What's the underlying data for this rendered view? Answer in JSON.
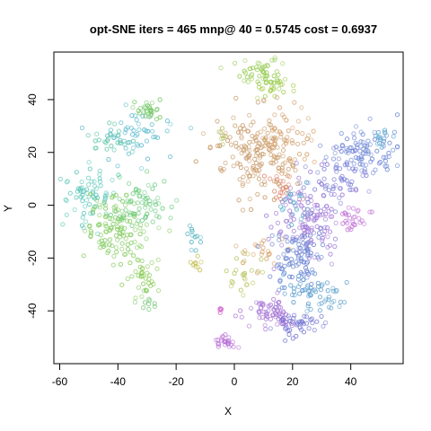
{
  "chart_data": {
    "type": "scatter",
    "title": "opt-SNE iters = 465 mnp@ 40 = 0.5745 cost = 0.6937",
    "xlabel": "X",
    "ylabel": "Y",
    "xlim": [
      -62,
      58
    ],
    "ylim": [
      -60,
      58
    ],
    "x_ticks": [
      -60,
      -40,
      -20,
      0,
      20,
      40
    ],
    "y_ticks": [
      -40,
      -20,
      0,
      20,
      40
    ],
    "grid": false,
    "legend": "none",
    "point_style": "open circles, semi-transparent, hue-colored by cluster",
    "clusters": [
      {
        "color": "#9acd58",
        "cx": 8,
        "cy": 50,
        "sx": 5,
        "sy": 3,
        "n": 55
      },
      {
        "color": "#a6cf50",
        "cx": 12,
        "cy": 45,
        "sx": 3,
        "sy": 2,
        "n": 20
      },
      {
        "color": "#c99b6a",
        "cx": 8,
        "cy": 20,
        "sx": 7,
        "sy": 8,
        "n": 170
      },
      {
        "color": "#d4a06a",
        "cx": 17,
        "cy": 24,
        "sx": 5,
        "sy": 6,
        "n": 50
      },
      {
        "color": "#e08a72",
        "cx": 16,
        "cy": 8,
        "sx": 3,
        "sy": 3,
        "n": 20
      },
      {
        "color": "#b6bd64",
        "cx": -5,
        "cy": 26,
        "sx": 2,
        "sy": 2,
        "n": 8
      },
      {
        "color": "#66bfcf",
        "cx": -34,
        "cy": 27,
        "sx": 6,
        "sy": 4,
        "n": 55
      },
      {
        "color": "#5fc7a8",
        "cx": -44,
        "cy": 24,
        "sx": 4,
        "sy": 3,
        "n": 25
      },
      {
        "color": "#78c86a",
        "cx": -30,
        "cy": 36,
        "sx": 3,
        "sy": 2,
        "n": 30
      },
      {
        "color": "#58c6b8",
        "cx": -50,
        "cy": 5,
        "sx": 5,
        "sy": 6,
        "n": 70
      },
      {
        "color": "#86cd64",
        "cx": -40,
        "cy": -8,
        "sx": 6,
        "sy": 7,
        "n": 130
      },
      {
        "color": "#6dcc82",
        "cx": -32,
        "cy": 0,
        "sx": 5,
        "sy": 5,
        "n": 60
      },
      {
        "color": "#8dcd5a",
        "cx": -31,
        "cy": -27,
        "sx": 3,
        "sy": 4,
        "n": 35
      },
      {
        "color": "#7ac878",
        "cx": -30,
        "cy": -38,
        "sx": 2,
        "sy": 2,
        "n": 10
      },
      {
        "color": "#5ab6c0",
        "cx": -14,
        "cy": -12,
        "sx": 1.5,
        "sy": 3,
        "n": 12
      },
      {
        "color": "#c6c25a",
        "cx": -13,
        "cy": -22,
        "sx": 1.5,
        "sy": 2,
        "n": 10
      },
      {
        "color": "#b9c45e",
        "cx": 3,
        "cy": -26,
        "sx": 3,
        "sy": 4,
        "n": 25
      },
      {
        "color": "#d8a068",
        "cx": 11,
        "cy": -18,
        "sx": 3,
        "sy": 3,
        "n": 20
      },
      {
        "color": "#6f88d6",
        "cx": 44,
        "cy": 20,
        "sx": 6,
        "sy": 4,
        "n": 90
      },
      {
        "color": "#7f7fd8",
        "cx": 35,
        "cy": 10,
        "sx": 6,
        "sy": 6,
        "n": 60
      },
      {
        "color": "#a07ad8",
        "cx": 26,
        "cy": -5,
        "sx": 6,
        "sy": 7,
        "n": 130
      },
      {
        "color": "#c47ad8",
        "cx": 40,
        "cy": -5,
        "sx": 3,
        "sy": 3,
        "n": 30
      },
      {
        "color": "#6a84d2",
        "cx": 22,
        "cy": -20,
        "sx": 4,
        "sy": 6,
        "n": 100
      },
      {
        "color": "#5fa0d0",
        "cx": 25,
        "cy": -32,
        "sx": 4,
        "sy": 4,
        "n": 40
      },
      {
        "color": "#a878d6",
        "cx": 13,
        "cy": -41,
        "sx": 4,
        "sy": 3,
        "n": 70
      },
      {
        "color": "#6e70d2",
        "cx": 22,
        "cy": -45,
        "sx": 4,
        "sy": 3,
        "n": 40
      },
      {
        "color": "#62a4cc",
        "cx": 32,
        "cy": -36,
        "sx": 3,
        "sy": 2,
        "n": 20
      },
      {
        "color": "#b870d8",
        "cx": -3,
        "cy": -52,
        "sx": 2,
        "sy": 1.5,
        "n": 25
      },
      {
        "color": "#d060cc",
        "cx": -5,
        "cy": -40,
        "sx": 1,
        "sy": 1.5,
        "n": 5
      },
      {
        "color": "#5eb2cc",
        "cx": 20,
        "cy": 0,
        "sx": 3,
        "sy": 4,
        "n": 20
      },
      {
        "color": "#5fa8d2",
        "cx": 51,
        "cy": 26,
        "sx": 2,
        "sy": 2,
        "n": 15
      }
    ]
  }
}
